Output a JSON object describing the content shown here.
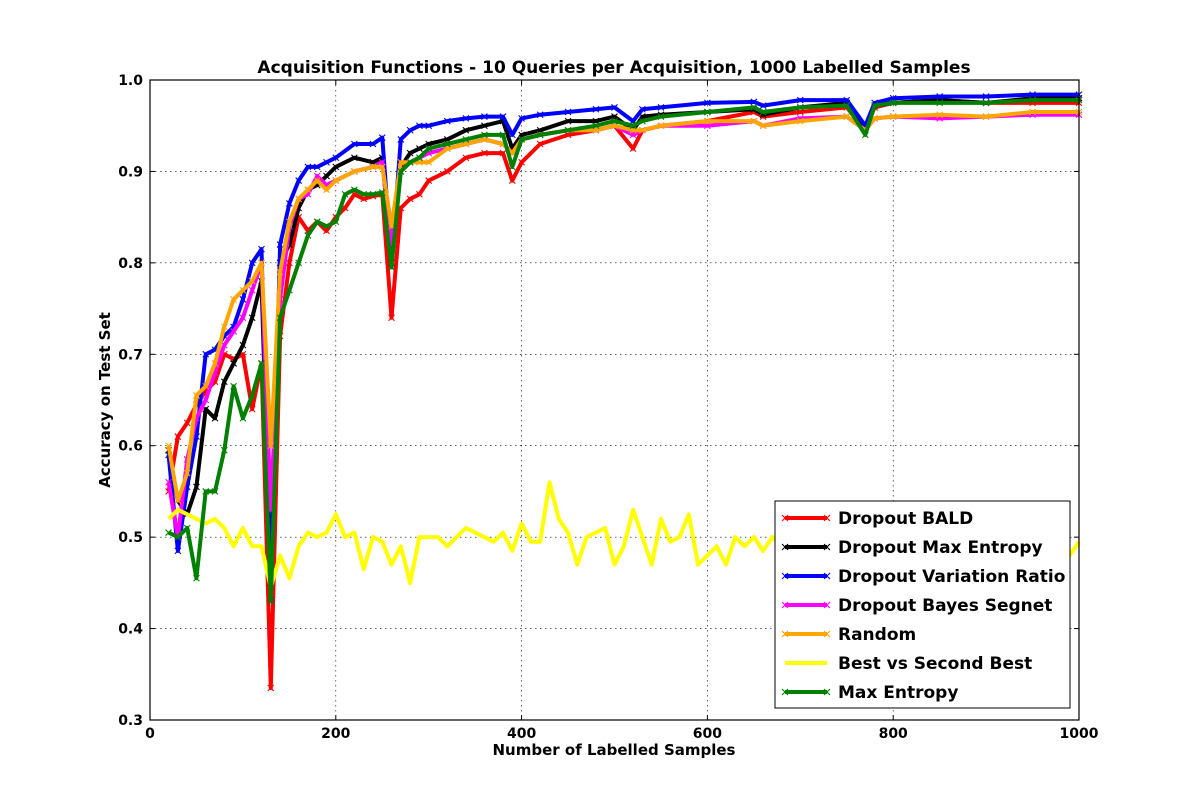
{
  "chart_data": {
    "type": "line",
    "title": "Acquisition Functions - 10 Queries per Acquisition, 1000 Labelled Samples",
    "xlabel": "Number of Labelled Samples",
    "ylabel": "Accuracy on Test Set",
    "xlim": [
      0,
      1000
    ],
    "ylim": [
      0.3,
      1.0
    ],
    "xticks": [
      0,
      200,
      400,
      600,
      800,
      1000
    ],
    "yticks": [
      0.3,
      0.4,
      0.5,
      0.6,
      0.7,
      0.8,
      0.9,
      1.0
    ],
    "xtick_labels": [
      "0",
      "200",
      "400",
      "600",
      "800",
      "1000"
    ],
    "ytick_labels": [
      "0.3",
      "0.4",
      "0.5",
      "0.6",
      "0.7",
      "0.8",
      "0.9",
      "1.0"
    ],
    "grid": true,
    "legend_position": "lower-right",
    "series": [
      {
        "name": "Dropout BALD",
        "color": "#ff0000",
        "x": [
          20,
          30,
          40,
          50,
          60,
          70,
          80,
          90,
          100,
          110,
          120,
          130,
          140,
          150,
          160,
          170,
          180,
          190,
          200,
          210,
          220,
          230,
          240,
          250,
          260,
          270,
          280,
          290,
          300,
          320,
          340,
          360,
          380,
          390,
          400,
          420,
          450,
          480,
          500,
          520,
          530,
          550,
          600,
          650,
          660,
          700,
          750,
          770,
          780,
          800,
          850,
          900,
          950,
          1000
        ],
        "y": [
          0.55,
          0.61,
          0.625,
          0.645,
          0.66,
          0.67,
          0.7,
          0.695,
          0.7,
          0.64,
          0.69,
          0.335,
          0.72,
          0.8,
          0.85,
          0.835,
          0.845,
          0.835,
          0.85,
          0.86,
          0.875,
          0.87,
          0.873,
          0.875,
          0.74,
          0.86,
          0.87,
          0.875,
          0.89,
          0.9,
          0.915,
          0.92,
          0.92,
          0.89,
          0.91,
          0.93,
          0.94,
          0.945,
          0.95,
          0.925,
          0.945,
          0.95,
          0.955,
          0.965,
          0.96,
          0.965,
          0.97,
          0.945,
          0.97,
          0.975,
          0.978,
          0.975,
          0.975,
          0.975
        ]
      },
      {
        "name": "Dropout Max Entropy",
        "color": "#000000",
        "x": [
          20,
          30,
          40,
          50,
          60,
          70,
          80,
          90,
          100,
          110,
          120,
          130,
          140,
          150,
          160,
          170,
          180,
          190,
          200,
          220,
          240,
          250,
          260,
          270,
          280,
          290,
          300,
          320,
          340,
          360,
          380,
          390,
          400,
          420,
          450,
          480,
          500,
          520,
          530,
          550,
          600,
          650,
          660,
          700,
          750,
          770,
          780,
          800,
          850,
          900,
          950,
          1000
        ],
        "y": [
          0.595,
          0.54,
          0.525,
          0.555,
          0.64,
          0.63,
          0.67,
          0.69,
          0.71,
          0.74,
          0.78,
          0.45,
          0.8,
          0.82,
          0.86,
          0.88,
          0.885,
          0.895,
          0.905,
          0.915,
          0.91,
          0.915,
          0.8,
          0.905,
          0.92,
          0.925,
          0.93,
          0.935,
          0.945,
          0.95,
          0.955,
          0.925,
          0.94,
          0.945,
          0.955,
          0.955,
          0.96,
          0.945,
          0.96,
          0.962,
          0.965,
          0.968,
          0.962,
          0.97,
          0.975,
          0.945,
          0.972,
          0.975,
          0.978,
          0.975,
          0.98,
          0.98
        ]
      },
      {
        "name": "Dropout Variation Ratio",
        "color": "#0000ff",
        "x": [
          20,
          30,
          40,
          50,
          60,
          70,
          80,
          90,
          100,
          110,
          120,
          130,
          140,
          150,
          160,
          170,
          180,
          190,
          200,
          220,
          240,
          250,
          260,
          270,
          280,
          290,
          300,
          320,
          340,
          360,
          380,
          390,
          400,
          420,
          450,
          480,
          500,
          520,
          530,
          550,
          600,
          650,
          660,
          700,
          750,
          770,
          780,
          800,
          850,
          900,
          950,
          1000
        ],
        "y": [
          0.59,
          0.485,
          0.555,
          0.61,
          0.7,
          0.705,
          0.72,
          0.73,
          0.76,
          0.8,
          0.815,
          0.43,
          0.82,
          0.865,
          0.89,
          0.905,
          0.905,
          0.91,
          0.915,
          0.93,
          0.93,
          0.937,
          0.8,
          0.935,
          0.945,
          0.95,
          0.95,
          0.955,
          0.958,
          0.96,
          0.96,
          0.94,
          0.958,
          0.962,
          0.965,
          0.968,
          0.97,
          0.955,
          0.968,
          0.97,
          0.975,
          0.976,
          0.972,
          0.978,
          0.978,
          0.95,
          0.975,
          0.98,
          0.982,
          0.982,
          0.984,
          0.984
        ]
      },
      {
        "name": "Dropout Bayes Segnet",
        "color": "#ff00ff",
        "x": [
          20,
          30,
          40,
          50,
          60,
          70,
          80,
          90,
          100,
          110,
          120,
          130,
          140,
          150,
          160,
          170,
          180,
          190,
          200,
          220,
          240,
          250,
          260,
          270,
          280,
          290,
          300,
          320,
          340,
          360,
          380,
          390,
          400,
          420,
          450,
          480,
          500,
          520,
          530,
          550,
          600,
          650,
          660,
          700,
          750,
          770,
          780,
          800,
          850,
          900,
          950,
          1000
        ],
        "y": [
          0.56,
          0.5,
          0.585,
          0.63,
          0.65,
          0.68,
          0.71,
          0.725,
          0.74,
          0.77,
          0.8,
          0.53,
          0.76,
          0.84,
          0.87,
          0.875,
          0.895,
          0.885,
          0.89,
          0.9,
          0.905,
          0.91,
          0.82,
          0.9,
          0.91,
          0.915,
          0.92,
          0.925,
          0.93,
          0.935,
          0.93,
          0.92,
          0.935,
          0.94,
          0.945,
          0.945,
          0.95,
          0.94,
          0.945,
          0.95,
          0.95,
          0.955,
          0.95,
          0.958,
          0.96,
          0.945,
          0.958,
          0.96,
          0.958,
          0.96,
          0.962,
          0.962
        ]
      },
      {
        "name": "Random",
        "color": "#ffa500",
        "x": [
          20,
          30,
          40,
          50,
          60,
          70,
          80,
          90,
          100,
          110,
          120,
          130,
          140,
          150,
          160,
          170,
          180,
          190,
          200,
          220,
          240,
          250,
          260,
          270,
          280,
          290,
          300,
          320,
          340,
          360,
          380,
          390,
          400,
          420,
          450,
          480,
          500,
          520,
          530,
          550,
          600,
          650,
          660,
          700,
          750,
          770,
          780,
          800,
          850,
          900,
          950,
          1000
        ],
        "y": [
          0.6,
          0.54,
          0.57,
          0.655,
          0.665,
          0.69,
          0.73,
          0.76,
          0.77,
          0.78,
          0.8,
          0.6,
          0.79,
          0.845,
          0.87,
          0.88,
          0.89,
          0.88,
          0.89,
          0.9,
          0.905,
          0.905,
          0.84,
          0.91,
          0.91,
          0.91,
          0.91,
          0.925,
          0.93,
          0.935,
          0.93,
          0.92,
          0.935,
          0.94,
          0.945,
          0.945,
          0.95,
          0.945,
          0.945,
          0.95,
          0.955,
          0.955,
          0.95,
          0.955,
          0.96,
          0.945,
          0.958,
          0.96,
          0.962,
          0.96,
          0.965,
          0.965
        ]
      },
      {
        "name": "Best vs Second Best",
        "color": "#ffff00",
        "x": [
          20,
          30,
          40,
          50,
          60,
          70,
          80,
          90,
          100,
          110,
          120,
          130,
          140,
          150,
          160,
          170,
          180,
          190,
          200,
          210,
          220,
          230,
          240,
          250,
          260,
          270,
          280,
          290,
          300,
          310,
          320,
          330,
          340,
          350,
          360,
          370,
          380,
          390,
          400,
          410,
          420,
          430,
          440,
          450,
          460,
          470,
          480,
          490,
          500,
          510,
          520,
          530,
          540,
          550,
          560,
          570,
          580,
          590,
          600,
          610,
          620,
          630,
          640,
          650,
          660,
          670,
          680,
          690,
          700,
          710,
          720,
          730,
          740,
          750,
          760,
          770,
          780,
          790,
          800,
          810,
          820,
          830,
          840,
          850,
          860,
          870,
          880,
          890,
          900,
          910,
          920,
          930,
          940,
          950,
          960,
          970,
          980,
          990,
          1000
        ],
        "y": [
          0.52,
          0.53,
          0.525,
          0.52,
          0.515,
          0.52,
          0.51,
          0.49,
          0.51,
          0.49,
          0.49,
          0.445,
          0.48,
          0.455,
          0.49,
          0.505,
          0.5,
          0.505,
          0.525,
          0.5,
          0.505,
          0.465,
          0.5,
          0.495,
          0.47,
          0.49,
          0.45,
          0.5,
          0.5,
          0.5,
          0.49,
          0.5,
          0.51,
          0.505,
          0.5,
          0.495,
          0.505,
          0.485,
          0.515,
          0.495,
          0.495,
          0.56,
          0.52,
          0.505,
          0.47,
          0.5,
          0.505,
          0.51,
          0.47,
          0.49,
          0.53,
          0.5,
          0.47,
          0.52,
          0.495,
          0.5,
          0.525,
          0.47,
          0.48,
          0.49,
          0.47,
          0.5,
          0.49,
          0.5,
          0.485,
          0.5,
          0.49,
          0.495,
          0.5,
          0.49,
          0.5,
          0.48,
          0.495,
          0.5,
          0.49,
          0.5,
          0.485,
          0.5,
          0.495,
          0.49,
          0.5,
          0.49,
          0.495,
          0.5,
          0.49,
          0.495,
          0.5,
          0.49,
          0.49,
          0.495,
          0.5,
          0.49,
          0.495,
          0.49,
          0.5,
          0.49,
          0.495,
          0.48,
          0.495
        ]
      },
      {
        "name": "Max Entropy",
        "color": "#008000",
        "x": [
          20,
          30,
          40,
          50,
          60,
          70,
          80,
          90,
          100,
          110,
          120,
          130,
          140,
          150,
          160,
          170,
          180,
          190,
          200,
          210,
          220,
          230,
          240,
          250,
          260,
          270,
          280,
          290,
          300,
          320,
          340,
          360,
          380,
          390,
          400,
          420,
          450,
          480,
          500,
          520,
          530,
          550,
          600,
          650,
          660,
          700,
          750,
          770,
          780,
          800,
          850,
          900,
          950,
          1000
        ],
        "y": [
          0.505,
          0.5,
          0.51,
          0.455,
          0.55,
          0.55,
          0.595,
          0.665,
          0.63,
          0.655,
          0.69,
          0.43,
          0.74,
          0.77,
          0.8,
          0.83,
          0.845,
          0.84,
          0.845,
          0.875,
          0.88,
          0.875,
          0.875,
          0.877,
          0.795,
          0.9,
          0.91,
          0.915,
          0.925,
          0.93,
          0.935,
          0.94,
          0.94,
          0.905,
          0.935,
          0.94,
          0.945,
          0.95,
          0.955,
          0.95,
          0.955,
          0.96,
          0.965,
          0.97,
          0.965,
          0.97,
          0.972,
          0.94,
          0.972,
          0.975,
          0.975,
          0.975,
          0.978,
          0.978
        ]
      }
    ]
  }
}
